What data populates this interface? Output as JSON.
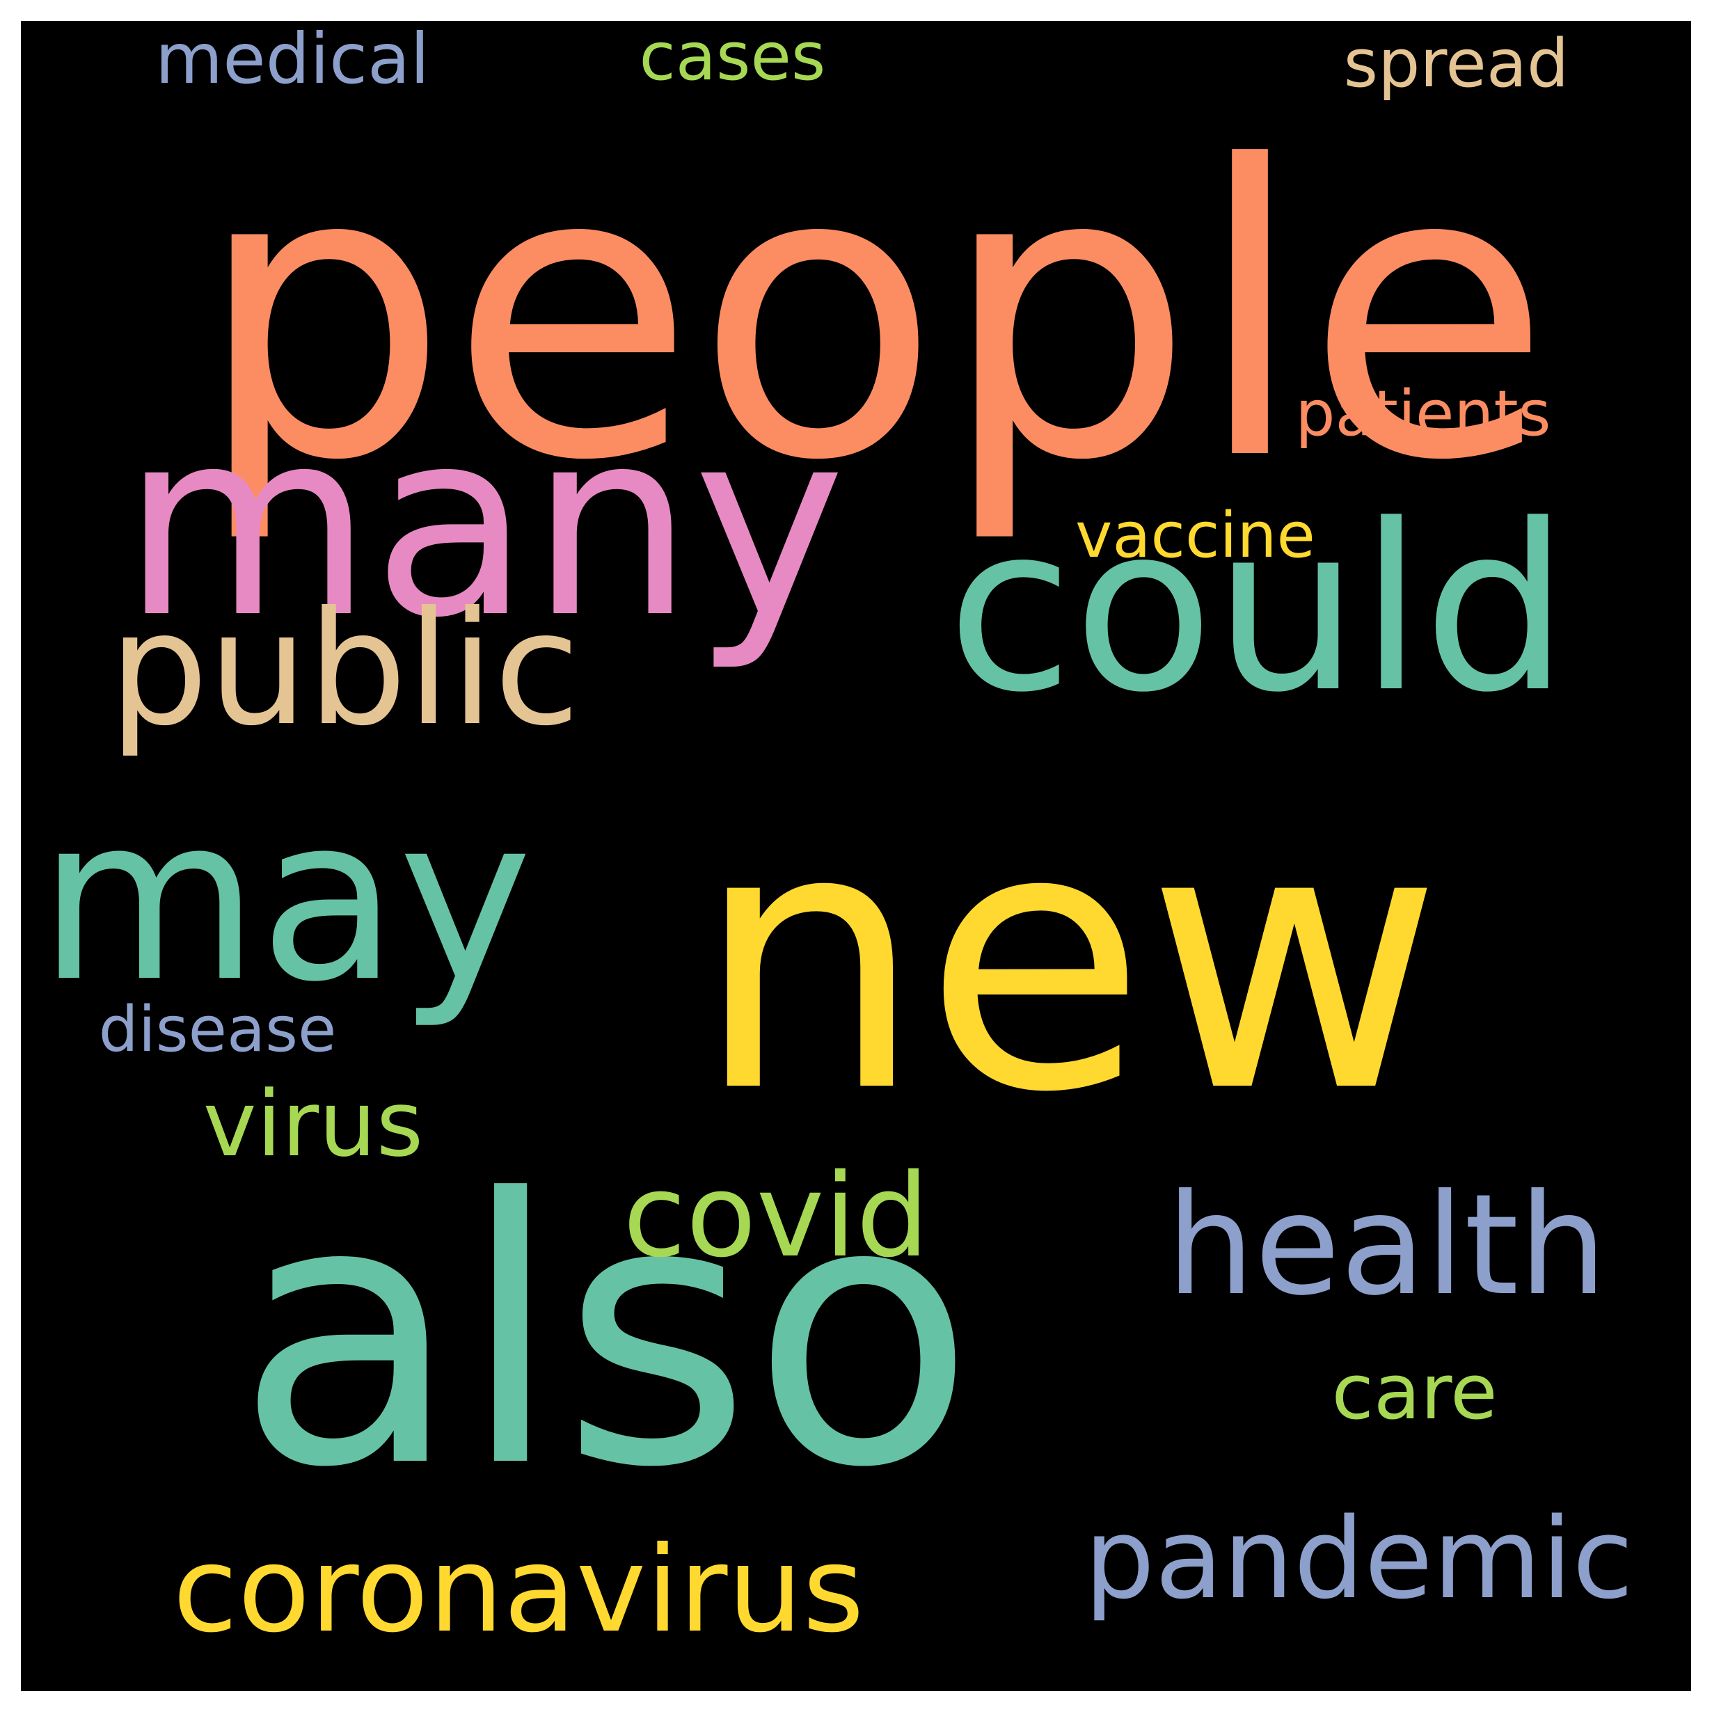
{
  "words": [
    {
      "text": "people",
      "color": "#fc8d62"
    },
    {
      "text": "new",
      "color": "#ffd92f"
    },
    {
      "text": "also",
      "color": "#66c2a5"
    },
    {
      "text": "many",
      "color": "#e78ac3"
    },
    {
      "text": "could",
      "color": "#66c2a5"
    },
    {
      "text": "may",
      "color": "#66c2a5"
    },
    {
      "text": "public",
      "color": "#e5c494"
    },
    {
      "text": "health",
      "color": "#8da0cb"
    },
    {
      "text": "pandemic",
      "color": "#8da0cb"
    },
    {
      "text": "coronavirus",
      "color": "#ffd92f"
    },
    {
      "text": "covid",
      "color": "#a6d854"
    },
    {
      "text": "virus",
      "color": "#a6d854"
    },
    {
      "text": "care",
      "color": "#a6d854"
    },
    {
      "text": "medical",
      "color": "#8da0cb"
    },
    {
      "text": "cases",
      "color": "#a6d854"
    },
    {
      "text": "spread",
      "color": "#e5c494"
    },
    {
      "text": "patients",
      "color": "#fc8d62"
    },
    {
      "text": "vaccine",
      "color": "#ffd92f"
    },
    {
      "text": "disease",
      "color": "#8da0cb"
    }
  ]
}
